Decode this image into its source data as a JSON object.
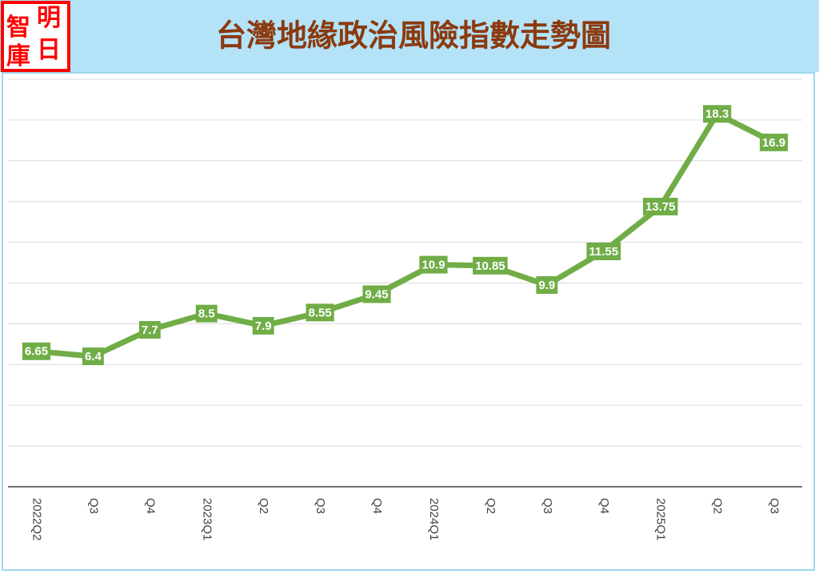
{
  "logo": [
    "智",
    "明",
    "庫",
    "日"
  ],
  "chart_data": {
    "type": "line",
    "title": "台灣地緣政治風險指數走勢圖",
    "categories": [
      "2022Q2",
      "Q3",
      "Q4",
      "2023Q1",
      "Q2",
      "Q3",
      "Q4",
      "2024Q1",
      "Q2",
      "Q3",
      "Q4",
      "2025Q1",
      "Q2",
      "Q3"
    ],
    "values": [
      6.65,
      6.4,
      7.7,
      8.5,
      7.9,
      8.55,
      9.45,
      10.9,
      10.85,
      9.9,
      11.55,
      13.75,
      18.3,
      16.9
    ],
    "color": "#70ad47",
    "ylim": [
      0,
      20
    ],
    "yticks": [
      0,
      2,
      4,
      6,
      8,
      10,
      12,
      14,
      16,
      18,
      20
    ],
    "grid": true
  }
}
